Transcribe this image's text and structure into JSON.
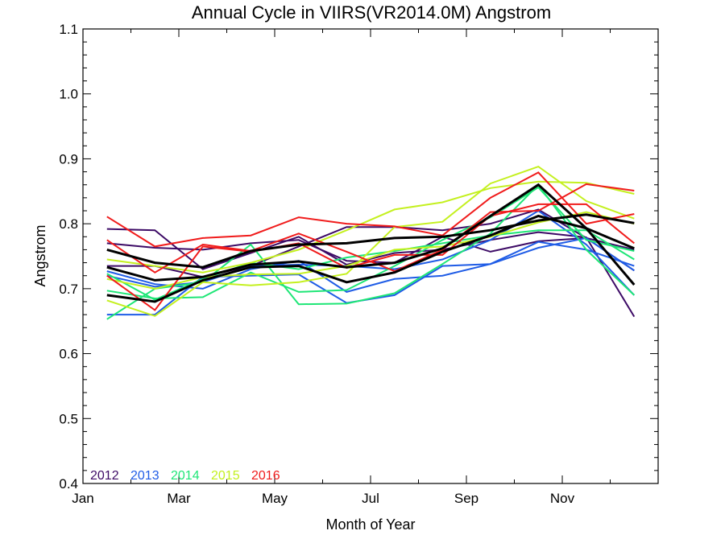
{
  "chart_data": {
    "type": "line",
    "title": "Annual Cycle in VIIRS(VR2014.0M) Angstrom",
    "xlabel": "Month of Year",
    "ylabel": "Angstrom",
    "xlim": [
      0,
      12
    ],
    "ylim": [
      0.4,
      1.1
    ],
    "x_ticks": [
      {
        "value": 0,
        "label": "Jan"
      },
      {
        "value": 2,
        "label": "Mar"
      },
      {
        "value": 4,
        "label": "May"
      },
      {
        "value": 6,
        "label": "Jul"
      },
      {
        "value": 8,
        "label": "Sep"
      },
      {
        "value": 10,
        "label": "Nov"
      }
    ],
    "y_ticks": [
      {
        "value": 0.4,
        "label": "0.4"
      },
      {
        "value": 0.5,
        "label": "0.5"
      },
      {
        "value": 0.6,
        "label": "0.6"
      },
      {
        "value": 0.7,
        "label": "0.7"
      },
      {
        "value": 0.8,
        "label": "0.8"
      },
      {
        "value": 0.9,
        "label": "0.9"
      },
      {
        "value": 1.0,
        "label": "1.0"
      },
      {
        "value": 1.1,
        "label": "1.1"
      }
    ],
    "x": [
      0.5,
      1.5,
      2.5,
      3.5,
      4.5,
      5.5,
      6.5,
      7.5,
      8.5,
      9.5,
      10.5,
      11.5
    ],
    "legend": [
      {
        "label": "2012",
        "color": "#3d0b66"
      },
      {
        "label": "2013",
        "color": "#1f5ce6"
      },
      {
        "label": "2014",
        "color": "#1ee676"
      },
      {
        "label": "2015",
        "color": "#c4f01f"
      },
      {
        "label": "2016",
        "color": "#f01b1b"
      }
    ],
    "legend_position": "bottom-left",
    "grid": false,
    "series": [
      {
        "group": "2012",
        "color": "#3d0b66",
        "width": 2,
        "values": [
          0.792,
          0.79,
          0.73,
          0.755,
          0.78,
          0.737,
          0.755,
          0.76,
          0.775,
          0.787,
          0.779,
          0.657
        ]
      },
      {
        "group": "2012",
        "color": "#3d0b66",
        "width": 2,
        "values": [
          0.77,
          0.763,
          0.76,
          0.77,
          0.775,
          0.743,
          0.74,
          0.78,
          0.757,
          0.773,
          0.778,
          0.728
        ]
      },
      {
        "group": "2012",
        "color": "#3d0b66",
        "width": 2,
        "values": [
          0.735,
          0.735,
          0.718,
          0.735,
          0.765,
          0.795,
          0.795,
          0.79,
          0.8,
          0.822,
          0.778,
          0.76
        ]
      },
      {
        "group": "2013",
        "color": "#1f5ce6",
        "width": 2,
        "values": [
          0.66,
          0.66,
          0.718,
          0.72,
          0.722,
          0.678,
          0.69,
          0.735,
          0.738,
          0.763,
          0.778,
          0.728
        ]
      },
      {
        "group": "2013",
        "color": "#1f5ce6",
        "width": 2,
        "values": [
          0.72,
          0.703,
          0.71,
          0.735,
          0.737,
          0.735,
          0.73,
          0.745,
          0.775,
          0.82,
          0.768,
          0.69
        ]
      },
      {
        "group": "2013",
        "color": "#1f5ce6",
        "width": 2,
        "values": [
          0.727,
          0.707,
          0.7,
          0.73,
          0.743,
          0.695,
          0.715,
          0.72,
          0.738,
          0.772,
          0.76,
          0.735
        ]
      },
      {
        "group": "2014",
        "color": "#1ee676",
        "width": 2,
        "values": [
          0.653,
          0.7,
          0.71,
          0.768,
          0.676,
          0.677,
          0.693,
          0.738,
          0.785,
          0.86,
          0.76,
          0.69
        ]
      },
      {
        "group": "2014",
        "color": "#1ee676",
        "width": 2,
        "values": [
          0.697,
          0.685,
          0.687,
          0.725,
          0.695,
          0.698,
          0.735,
          0.775,
          0.81,
          0.856,
          0.775,
          0.758
        ]
      },
      {
        "group": "2014",
        "color": "#1ee676",
        "width": 2,
        "values": [
          0.723,
          0.683,
          0.715,
          0.74,
          0.73,
          0.748,
          0.758,
          0.77,
          0.782,
          0.79,
          0.79,
          0.745
        ]
      },
      {
        "group": "2015",
        "color": "#c4f01f",
        "width": 2,
        "values": [
          0.745,
          0.735,
          0.725,
          0.74,
          0.76,
          0.79,
          0.822,
          0.833,
          0.855,
          0.865,
          0.863,
          0.846
        ]
      },
      {
        "group": "2015",
        "color": "#c4f01f",
        "width": 2,
        "values": [
          0.682,
          0.658,
          0.71,
          0.705,
          0.71,
          0.723,
          0.795,
          0.803,
          0.862,
          0.888,
          0.835,
          0.808
        ]
      },
      {
        "group": "2015",
        "color": "#c4f01f",
        "width": 2,
        "values": [
          0.715,
          0.7,
          0.718,
          0.722,
          0.723,
          0.735,
          0.76,
          0.765,
          0.78,
          0.802,
          0.818,
          0.8
        ]
      },
      {
        "group": "2016",
        "color": "#f01b1b",
        "width": 2,
        "values": [
          0.811,
          0.765,
          0.778,
          0.782,
          0.81,
          0.8,
          0.796,
          0.782,
          0.84,
          0.879,
          0.8,
          0.815
        ]
      },
      {
        "group": "2016",
        "color": "#f01b1b",
        "width": 2,
        "values": [
          0.775,
          0.725,
          0.768,
          0.758,
          0.785,
          0.757,
          0.727,
          0.76,
          0.818,
          0.82,
          0.861,
          0.851
        ]
      },
      {
        "group": "2016",
        "color": "#f01b1b",
        "width": 2,
        "values": [
          0.72,
          0.667,
          0.765,
          0.757,
          0.77,
          0.732,
          0.752,
          0.752,
          0.812,
          0.83,
          0.83,
          0.77
        ]
      },
      {
        "group": "mean",
        "color": "#000000",
        "width": 3,
        "values": [
          0.76,
          0.74,
          0.733,
          0.758,
          0.768,
          0.77,
          0.778,
          0.78,
          0.79,
          0.805,
          0.814,
          0.801
        ]
      },
      {
        "group": "mean",
        "color": "#000000",
        "width": 3,
        "values": [
          0.733,
          0.713,
          0.718,
          0.737,
          0.742,
          0.733,
          0.74,
          0.762,
          0.812,
          0.86,
          0.793,
          0.706
        ]
      },
      {
        "group": "mean",
        "color": "#000000",
        "width": 3,
        "values": [
          0.69,
          0.68,
          0.713,
          0.733,
          0.735,
          0.71,
          0.725,
          0.757,
          0.782,
          0.812,
          0.793,
          0.762
        ]
      }
    ]
  }
}
